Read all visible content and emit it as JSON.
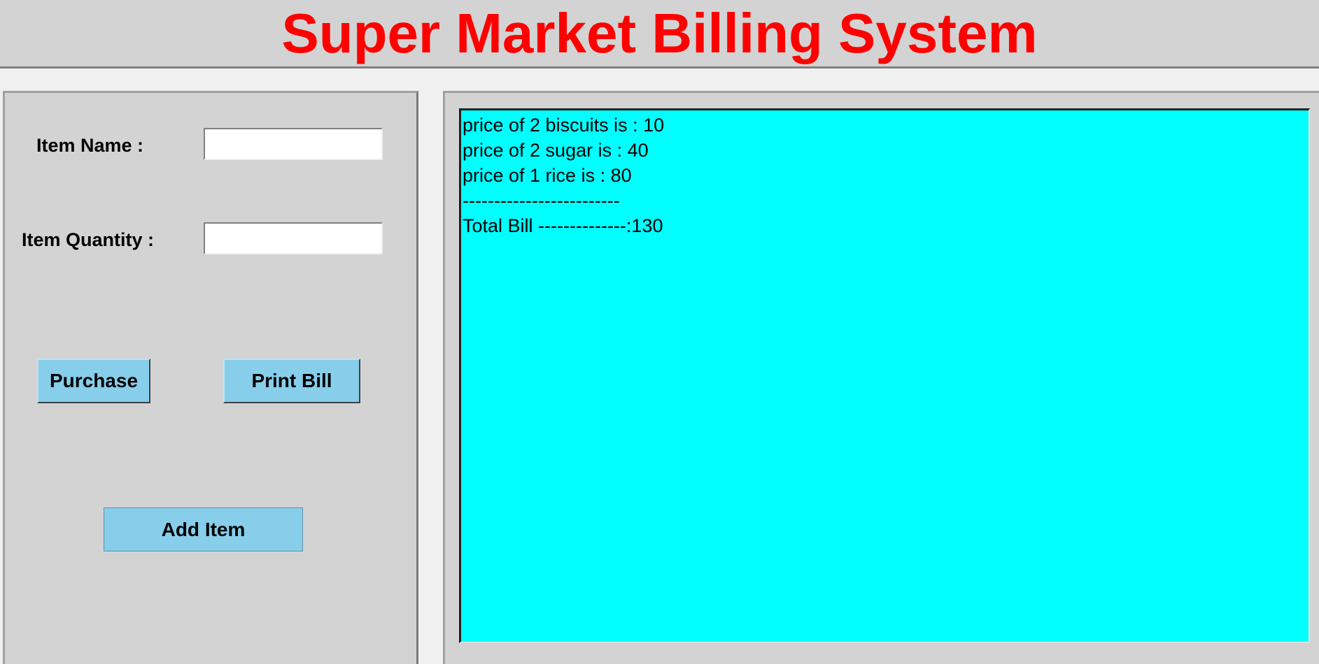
{
  "header": {
    "title": "Super Market Billing System"
  },
  "form": {
    "item_name_label": "Item Name :",
    "item_name_value": "",
    "item_quantity_label": "Item Quantity :",
    "item_quantity_value": "",
    "purchase_label": "Purchase",
    "print_bill_label": "Print Bill",
    "add_item_label": "Add Item"
  },
  "bill": {
    "lines": [
      "price of 2 biscuits is : 10",
      "price of 2 sugar is : 40",
      "price of 1 rice is : 80",
      "-------------------------",
      "Total Bill --------------:130"
    ]
  },
  "colors": {
    "title": "#ff0000",
    "panel_background": "#d3d3d3",
    "button_background": "#87ceeb",
    "bill_background": "#00ffff"
  }
}
